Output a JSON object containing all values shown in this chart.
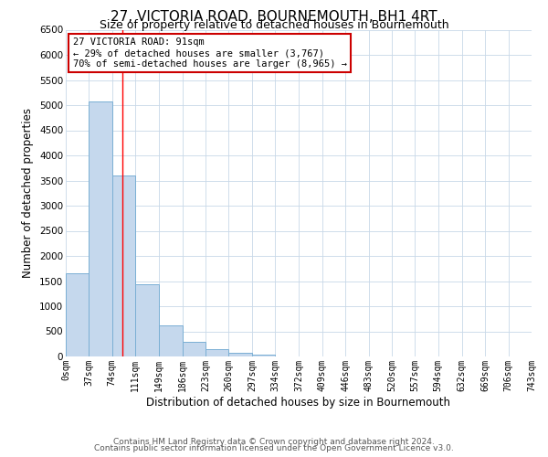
{
  "title": "27, VICTORIA ROAD, BOURNEMOUTH, BH1 4RT",
  "subtitle": "Size of property relative to detached houses in Bournemouth",
  "xlabel": "Distribution of detached houses by size in Bournemouth",
  "ylabel": "Number of detached properties",
  "bin_edges": [
    0,
    37,
    74,
    111,
    149,
    186,
    223,
    260,
    297,
    334,
    372,
    409,
    446,
    483,
    520,
    557,
    594,
    632,
    669,
    706,
    743
  ],
  "bar_heights": [
    1650,
    5080,
    3600,
    1430,
    610,
    300,
    150,
    70,
    30,
    0,
    0,
    0,
    0,
    0,
    0,
    0,
    0,
    0,
    0,
    0
  ],
  "bar_color": "#c5d8ed",
  "bar_edge_color": "#7aafd4",
  "red_line_x": 91,
  "annotation_title": "27 VICTORIA ROAD: 91sqm",
  "annotation_line1": "← 29% of detached houses are smaller (3,767)",
  "annotation_line2": "70% of semi-detached houses are larger (8,965) →",
  "annotation_box_color": "#ffffff",
  "annotation_box_edge_color": "#cc0000",
  "ylim": [
    0,
    6500
  ],
  "xlim": [
    0,
    743
  ],
  "tick_labels": [
    "0sqm",
    "37sqm",
    "74sqm",
    "111sqm",
    "149sqm",
    "186sqm",
    "223sqm",
    "260sqm",
    "297sqm",
    "334sqm",
    "372sqm",
    "409sqm",
    "446sqm",
    "483sqm",
    "520sqm",
    "557sqm",
    "594sqm",
    "632sqm",
    "669sqm",
    "706sqm",
    "743sqm"
  ],
  "yticks": [
    0,
    500,
    1000,
    1500,
    2000,
    2500,
    3000,
    3500,
    4000,
    4500,
    5000,
    5500,
    6000,
    6500
  ],
  "footer_line1": "Contains HM Land Registry data © Crown copyright and database right 2024.",
  "footer_line2": "Contains public sector information licensed under the Open Government Licence v3.0.",
  "background_color": "#ffffff",
  "grid_color": "#c8d8e8",
  "title_fontsize": 11,
  "subtitle_fontsize": 9,
  "axis_label_fontsize": 8.5,
  "tick_fontsize": 7,
  "annotation_fontsize": 7.5,
  "footer_fontsize": 6.5
}
